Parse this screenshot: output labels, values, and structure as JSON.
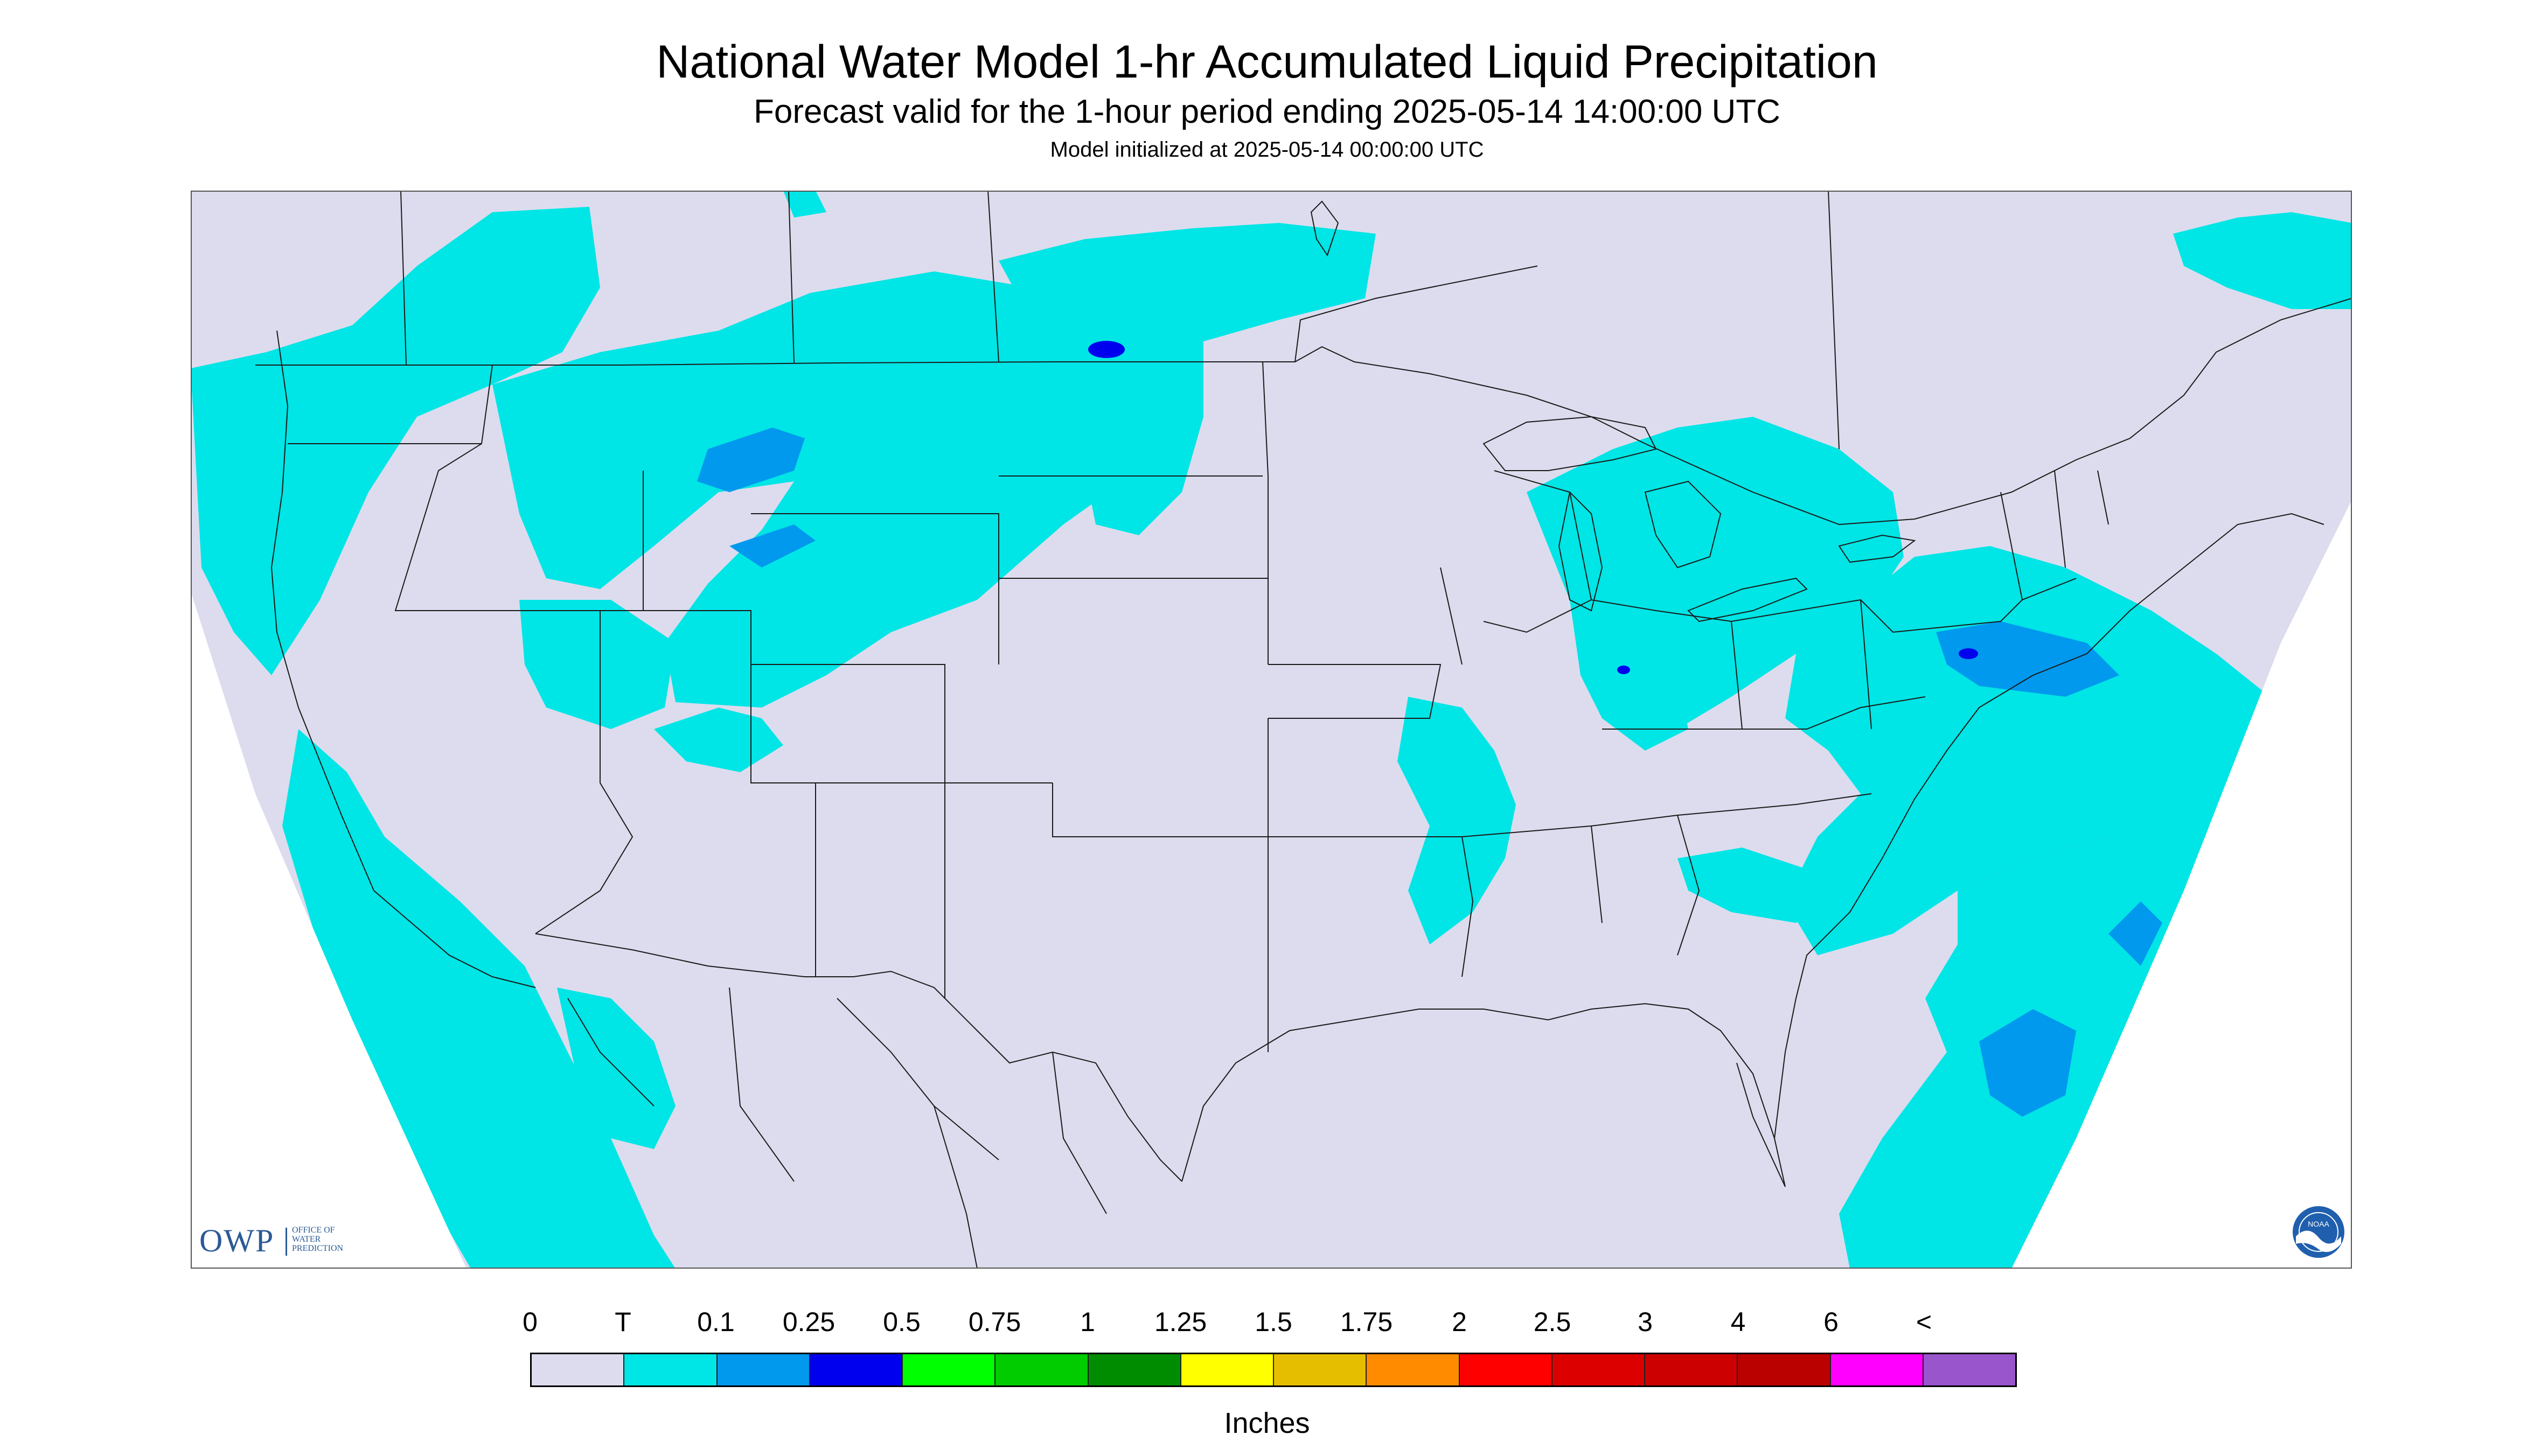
{
  "title": "National Water Model 1-hr Accumulated Liquid Precipitation",
  "subtitle": "Forecast valid for the 1-hour period ending 2025-05-14 14:00:00 UTC",
  "init_line": "Model initialized at 2025-05-14 00:00:00 UTC",
  "owp": {
    "mark": "OWP",
    "lines": [
      "OFFICE OF",
      "WATER",
      "PREDICTION"
    ]
  },
  "noaa": {
    "text": "NOAA"
  },
  "legend": {
    "labels": [
      "0",
      "T",
      "0.1",
      "0.25",
      "0.5",
      "0.75",
      "1",
      "1.25",
      "1.5",
      "1.75",
      "2",
      "2.5",
      "3",
      "4",
      "6",
      "<"
    ],
    "colors": [
      "#dcdcee",
      "#00e5e5",
      "#0099ee",
      "#0000ee",
      "#00ff00",
      "#00cc00",
      "#008c00",
      "#ffff00",
      "#e6be00",
      "#ff8c00",
      "#ff0000",
      "#dd0000",
      "#cc0000",
      "#bb0000",
      "#ff00ff",
      "#9955cc"
    ],
    "units": "Inches"
  },
  "map_colors": {
    "no_data": "#ffffff",
    "domain": "#dcdcee",
    "trace": "#00e5e5",
    "light": "#0099ee",
    "moderate": "#0000ee",
    "boundary": "#1a1a1a"
  }
}
